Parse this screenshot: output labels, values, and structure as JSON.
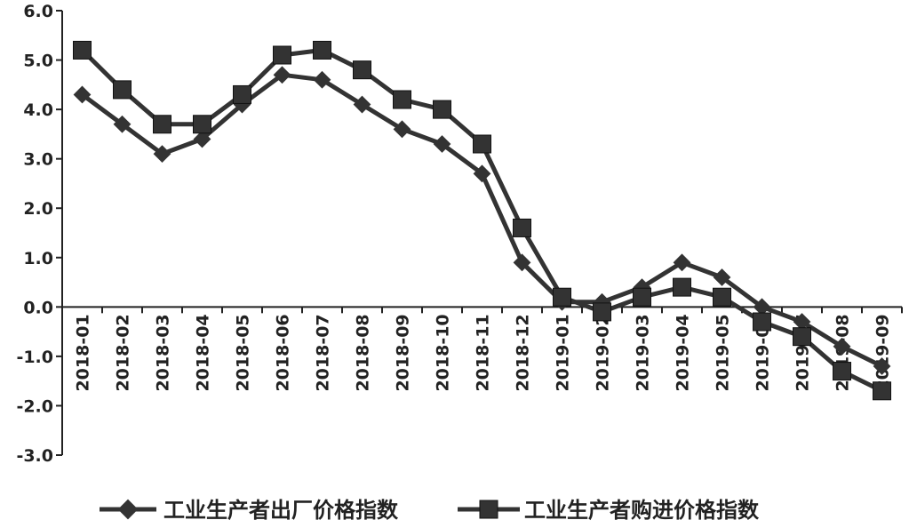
{
  "chart_data": {
    "type": "line",
    "title": "",
    "xlabel": "",
    "ylabel": "",
    "ylim": [
      -3.0,
      6.0
    ],
    "yticks": [
      "6.0",
      "5.0",
      "4.0",
      "3.0",
      "2.0",
      "1.0",
      "0.0",
      "-1.0",
      "-2.0",
      "-3.0"
    ],
    "grid": false,
    "legend_position": "bottom",
    "categories": [
      "2018-01",
      "2018-02",
      "2018-03",
      "2018-04",
      "2018-05",
      "2018-06",
      "2018-07",
      "2018-08",
      "2018-09",
      "2018-10",
      "2018-11",
      "2018-12",
      "2019-01",
      "2019-02",
      "2019-03",
      "2019-04",
      "2019-05",
      "2019-06",
      "2019-07",
      "2019-08",
      "2019-09"
    ],
    "series": [
      {
        "name": "工业生产者出厂价格指数",
        "marker": "diamond",
        "color": "#333333",
        "values": [
          4.3,
          3.7,
          3.1,
          3.4,
          4.1,
          4.7,
          4.6,
          4.1,
          3.6,
          3.3,
          2.7,
          0.9,
          0.1,
          0.1,
          0.4,
          0.9,
          0.6,
          0.0,
          -0.3,
          -0.8,
          -1.2
        ]
      },
      {
        "name": "工业生产者购进价格指数",
        "marker": "square",
        "color": "#333333",
        "values": [
          5.2,
          4.4,
          3.7,
          3.7,
          4.3,
          5.1,
          5.2,
          4.8,
          4.2,
          4.0,
          3.3,
          1.6,
          0.2,
          -0.1,
          0.2,
          0.4,
          0.2,
          -0.3,
          -0.6,
          -1.3,
          -1.7
        ]
      }
    ]
  }
}
